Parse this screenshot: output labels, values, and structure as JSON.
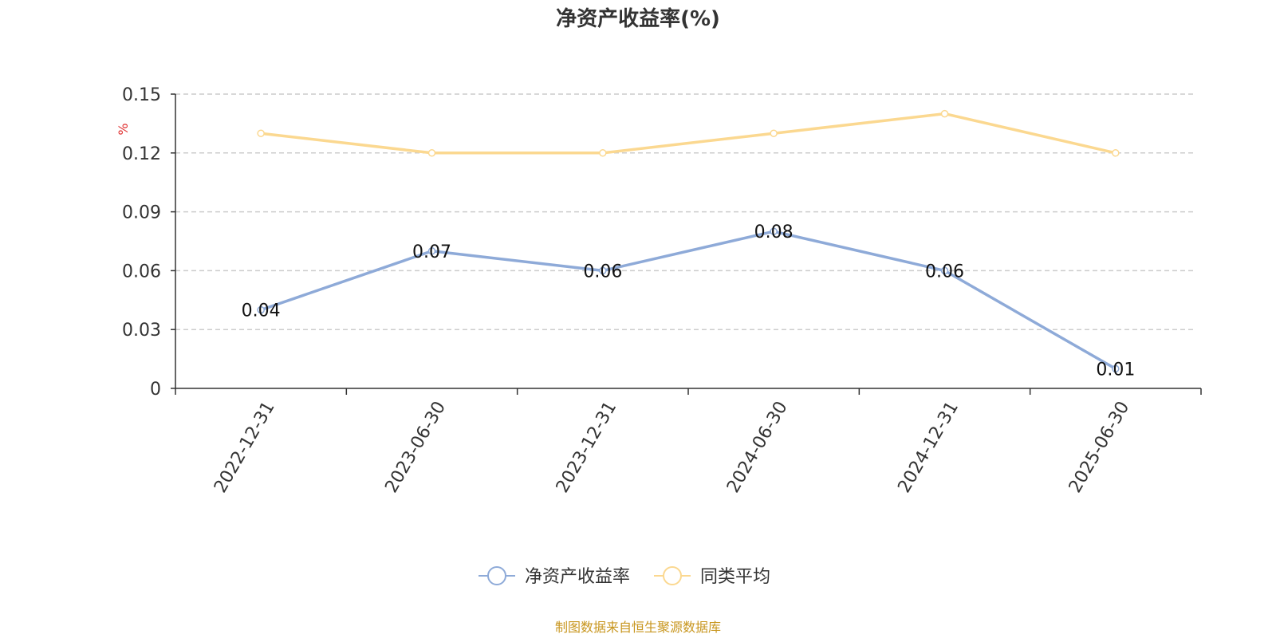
{
  "chart_data": {
    "type": "line",
    "title": "净资产收益率(%)",
    "ylabel": "%",
    "categories": [
      "2022-12-31",
      "2023-06-30",
      "2023-12-31",
      "2024-06-30",
      "2024-12-31",
      "2025-06-30"
    ],
    "ylim": [
      0,
      0.15
    ],
    "yticks": [
      "0",
      "0.03",
      "0.06",
      "0.09",
      "0.12",
      "0.15"
    ],
    "grid": true,
    "legend_position": "bottom",
    "series": [
      {
        "name": "净资产收益率",
        "values": [
          0.04,
          0.07,
          0.06,
          0.08,
          0.06,
          0.01
        ],
        "color": "#8eaad8",
        "data_labels": [
          "0.04",
          "0.07",
          "0.06",
          "0.08",
          "0.06",
          "0.01"
        ]
      },
      {
        "name": "同类平均",
        "values": [
          0.13,
          0.12,
          0.12,
          0.13,
          0.14,
          0.12
        ],
        "color": "#fbd890"
      }
    ]
  },
  "colors": {
    "unit": "#e03030",
    "source": "#c8961e",
    "grid": "#cccccc",
    "axis": "#333333"
  },
  "source_text": "制图数据来自恒生聚源数据库"
}
